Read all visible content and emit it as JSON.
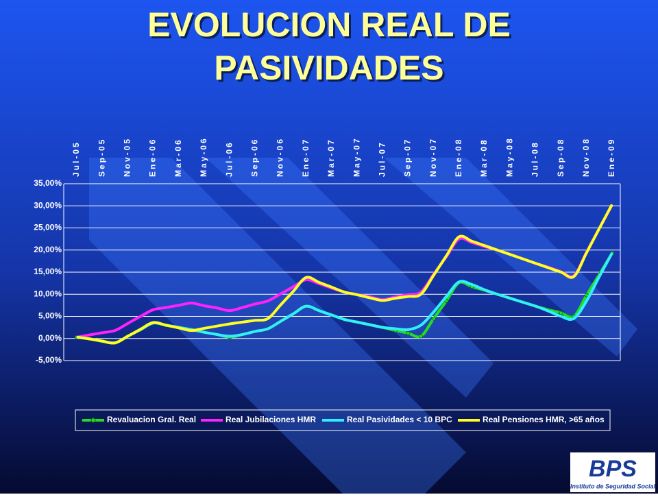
{
  "chart_data": {
    "type": "line",
    "title": "EVOLUCION REAL DE",
    "subtitle": "PASIVIDADES",
    "categories": [
      "Jul-05",
      null,
      "Sep-05",
      null,
      "Nov-05",
      null,
      "Ene-06",
      null,
      "Mar-06",
      null,
      "May-06",
      null,
      "Jul-06",
      null,
      "Sep-06",
      null,
      "Nov-06",
      null,
      "Ene-07",
      null,
      "Mar-07",
      null,
      "May-07",
      null,
      "Jul-07",
      null,
      "Sep-07",
      null,
      "Nov-07",
      null,
      "Ene-08",
      null,
      "Mar-08",
      null,
      "May-08",
      null,
      "Jul-08",
      null,
      "Sep-08",
      null,
      "Nov-08",
      null,
      "Ene-09"
    ],
    "series": [
      {
        "name": "Revaluacion Gral. Real",
        "color": "#22dd22",
        "markers": true,
        "values": [
          0.3,
          -0.1,
          -0.6,
          -1.0,
          0.5,
          2.0,
          3.5,
          3.0,
          2.5,
          2.0,
          1.4,
          0.9,
          0.3,
          0.9,
          1.6,
          2.2,
          3.9,
          5.6,
          7.3,
          6.3,
          5.3,
          4.3,
          3.7,
          3.1,
          2.5,
          1.8,
          1.2,
          0.5,
          4.5,
          8.5,
          12.6,
          11.7,
          10.9,
          10.0,
          9.1,
          8.2,
          7.3,
          6.5,
          5.8,
          5.0,
          9.8,
          14.5,
          19.3
        ]
      },
      {
        "name": "Real Jubilaciones HMR",
        "color": "#ff22ff",
        "markers": false,
        "values": [
          0.3,
          0.8,
          1.3,
          1.8,
          3.4,
          5.0,
          6.5,
          7.0,
          7.5,
          8.0,
          7.4,
          6.9,
          6.3,
          7.0,
          7.8,
          8.5,
          10.1,
          11.7,
          13.3,
          12.4,
          11.4,
          10.5,
          9.9,
          9.4,
          8.8,
          9.4,
          9.9,
          10.5,
          14.5,
          18.5,
          22.5,
          21.7,
          20.8,
          20.0,
          19.0,
          18.0,
          17.0,
          16.1,
          15.1,
          14.2,
          19.5,
          24.9,
          30.2
        ]
      },
      {
        "name": "Real Pasividades < 10 BPC",
        "color": "#33eeff",
        "markers": false,
        "values": [
          0.3,
          -0.1,
          -0.6,
          -1.0,
          0.5,
          2.0,
          3.5,
          3.0,
          2.5,
          2.0,
          1.4,
          0.9,
          0.5,
          0.9,
          1.6,
          2.2,
          3.9,
          5.6,
          7.3,
          6.3,
          5.3,
          4.3,
          3.7,
          3.1,
          2.5,
          2.2,
          2.0,
          3.0,
          6.0,
          9.5,
          12.8,
          12.2,
          11.0,
          10.0,
          9.1,
          8.2,
          7.3,
          6.2,
          5.0,
          4.5,
          8.5,
          14.0,
          19.3
        ]
      },
      {
        "name": "Real Pensiones HMR, >65 años",
        "color": "#ffff22",
        "markers": false,
        "values": [
          0.3,
          -0.1,
          -0.6,
          -1.0,
          0.5,
          2.1,
          3.6,
          3.0,
          2.4,
          1.8,
          2.3,
          2.8,
          3.3,
          3.7,
          4.1,
          4.5,
          7.6,
          10.7,
          13.8,
          12.7,
          11.6,
          10.5,
          9.9,
          9.2,
          8.6,
          9.1,
          9.5,
          10.0,
          14.3,
          18.7,
          23.0,
          22.0,
          21.0,
          20.0,
          19.0,
          18.0,
          17.0,
          16.0,
          15.0,
          14.0,
          19.4,
          24.9,
          30.3
        ]
      }
    ],
    "ylim": [
      -5,
      35
    ],
    "yticks": [
      {
        "value": -5,
        "label": "-5,00%"
      },
      {
        "value": 0,
        "label": "0,00%"
      },
      {
        "value": 5,
        "label": "5,00%"
      },
      {
        "value": 10,
        "label": "10,00%"
      },
      {
        "value": 15,
        "label": "15,00%"
      },
      {
        "value": 20,
        "label": "20,00%"
      },
      {
        "value": 25,
        "label": "25,00%"
      },
      {
        "value": 30,
        "label": "30,00%"
      },
      {
        "value": 35,
        "label": "35,00%"
      }
    ],
    "grid": true,
    "legend": "bottom"
  },
  "logo": {
    "name": "BPS",
    "subtitle": "Instituto de Seguridad Social"
  }
}
